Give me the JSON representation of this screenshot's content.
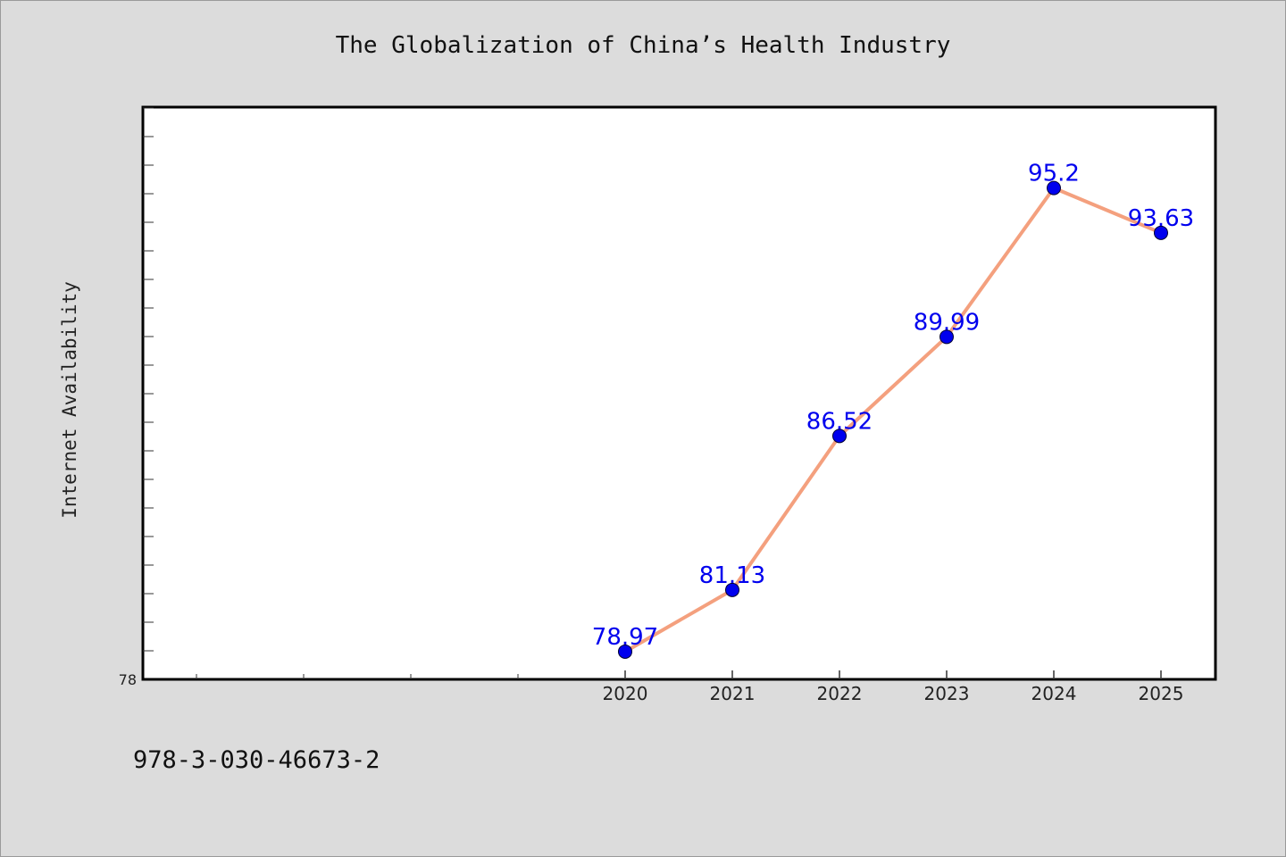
{
  "chart_data": {
    "type": "line",
    "title": "The Globalization of China’s Health Industry",
    "xlabel": "",
    "ylabel": "Internet Availability",
    "x": [
      "2020",
      "2021",
      "2022",
      "2023",
      "2024",
      "2025"
    ],
    "series": [
      {
        "values": [
          78.97,
          81.13,
          86.52,
          89.99,
          95.2,
          93.63
        ],
        "labels": [
          "78.97",
          "81.13",
          "86.52",
          "89.99",
          "95.2",
          "93.63"
        ]
      }
    ],
    "y_tick_labels": [
      "78"
    ],
    "ylim": [
      78,
      98
    ],
    "grid": false,
    "line_color": "#f4a07e",
    "marker_color": "#0000ee",
    "label_color": "#0000ee",
    "plot_background": "#ffffff",
    "page_background": "#dcdcdc"
  },
  "footer": {
    "identifier": "978-3-030-46673-2"
  }
}
